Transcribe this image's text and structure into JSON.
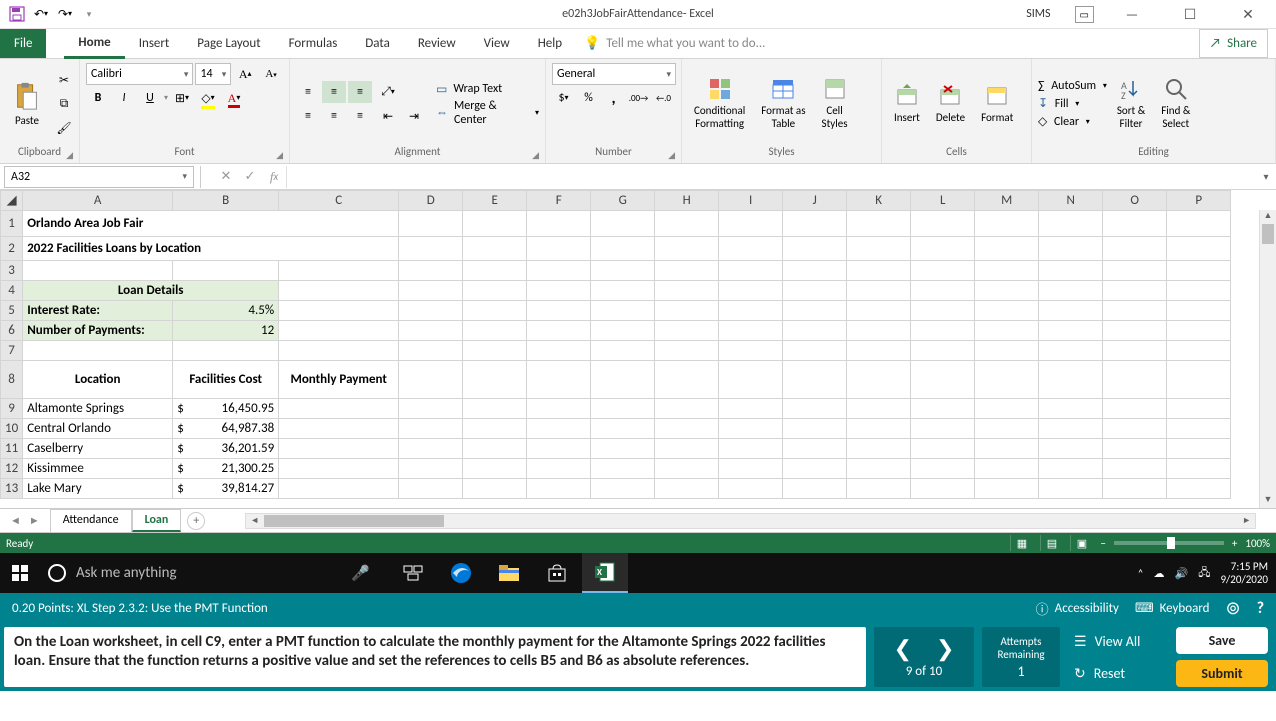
{
  "app": {
    "title": "e02h3JobFairAttendance- Excel",
    "user": "SIMS"
  },
  "tabs": {
    "file": "File",
    "items": [
      "Home",
      "Insert",
      "Page Layout",
      "Formulas",
      "Data",
      "Review",
      "View",
      "Help"
    ],
    "active": "Home",
    "tellme": "Tell me what you want to do...",
    "share": "Share"
  },
  "ribbon": {
    "clipboard": {
      "paste": "Paste",
      "label": "Clipboard"
    },
    "font": {
      "name": "Calibri",
      "size": "14",
      "bold": "B",
      "italic": "I",
      "underline": "U",
      "label": "Font"
    },
    "alignment": {
      "wrap": "Wrap Text",
      "merge": "Merge & Center",
      "label": "Alignment"
    },
    "number": {
      "format": "General",
      "label": "Number"
    },
    "styles": {
      "cond": "Conditional\nFormatting",
      "table": "Format as\nTable",
      "cell": "Cell\nStyles",
      "label": "Styles"
    },
    "cells": {
      "insert": "Insert",
      "delete": "Delete",
      "format": "Format",
      "label": "Cells"
    },
    "editing": {
      "autosum": "AutoSum",
      "fill": "Fill",
      "clear": "Clear",
      "sort": "Sort &\nFilter",
      "find": "Find &\nSelect",
      "label": "Editing"
    }
  },
  "formula_bar": {
    "namebox": "A32",
    "formula": ""
  },
  "columns": [
    "A",
    "B",
    "C",
    "D",
    "E",
    "F",
    "G",
    "H",
    "I",
    "J",
    "K",
    "L",
    "M",
    "N",
    "O",
    "P"
  ],
  "rows": [
    "1",
    "2",
    "3",
    "4",
    "5",
    "6",
    "7",
    "8",
    "9",
    "10",
    "11",
    "12",
    "13"
  ],
  "sheet": {
    "title1": "Orlando Area Job Fair",
    "title2": "2022 Facilities Loans by Location",
    "loan_details_hdr": "Loan Details",
    "interest_rate_label": "Interest Rate:",
    "interest_rate_value": "4.5%",
    "num_payments_label": "Number of Payments:",
    "num_payments_value": "12",
    "location_hdr": "Location",
    "facilities_hdr": "Facilities Cost",
    "monthly_hdr": "Monthly Payment",
    "data": [
      {
        "loc": "Altamonte Springs",
        "cost": "16,450.95"
      },
      {
        "loc": "Central Orlando",
        "cost": "64,987.38"
      },
      {
        "loc": "Caselberry",
        "cost": "36,201.59"
      },
      {
        "loc": "Kissimmee",
        "cost": "21,300.25"
      },
      {
        "loc": "Lake Mary",
        "cost": "39,814.27"
      }
    ],
    "currency_symbol": "$"
  },
  "sheet_tabs": {
    "items": [
      "Attendance",
      "Loan"
    ],
    "active": "Loan"
  },
  "statusbar": {
    "ready": "Ready",
    "zoom": "100%"
  },
  "win": {
    "search_placeholder": "Ask me anything",
    "time": "7:15 PM",
    "date": "9/20/2020"
  },
  "mylab": {
    "points": "0.20 Points: XL Step 2.3.2: Use the PMT Function",
    "accessibility": "Accessibility",
    "keyboard": "Keyboard"
  },
  "instr": {
    "text": "On the Loan worksheet, in cell C9, enter a PMT function to calculate the monthly payment for the Altamonte Springs 2022 facilities loan. Ensure that the function returns a positive value and set the references to cells B5 and B6 as absolute references.",
    "counter": "9 of 10",
    "attempts_label": "Attempts Remaining",
    "attempts_value": "1",
    "view_all": "View All",
    "reset": "Reset",
    "save": "Save",
    "submit": "Submit"
  },
  "colors": {
    "excel_green": "#217346",
    "teal": "#00838f",
    "teal_dark": "#006b75",
    "yellow": "#fdb714"
  }
}
